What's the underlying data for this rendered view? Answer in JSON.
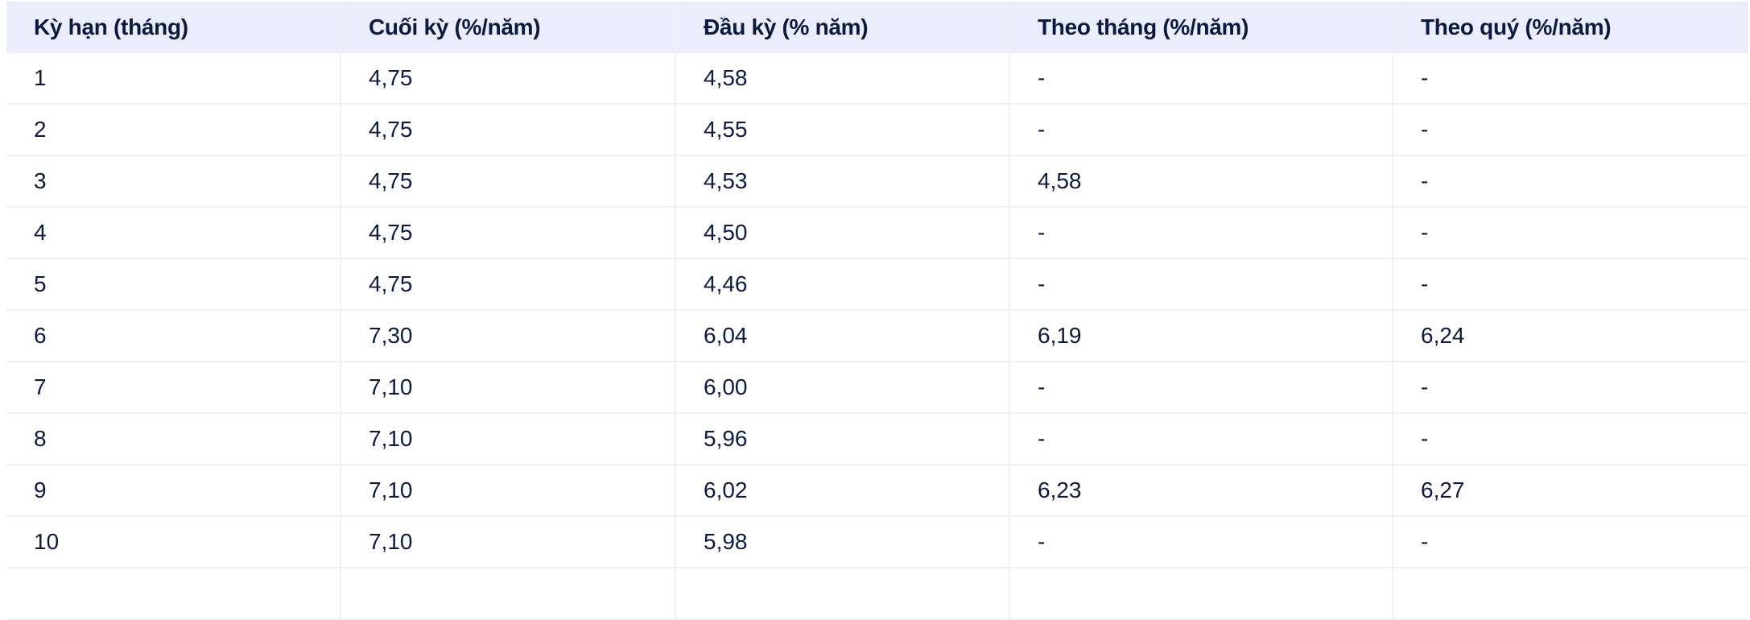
{
  "table": {
    "headers": [
      "Kỳ hạn (tháng)",
      "Cuối kỳ (%/năm)",
      "Đầu kỳ (% năm)",
      "Theo tháng (%/năm)",
      "Theo quý (%/năm)"
    ],
    "rows": [
      [
        "1",
        "4,75",
        "4,58",
        "-",
        "-"
      ],
      [
        "2",
        "4,75",
        "4,55",
        "-",
        "-"
      ],
      [
        "3",
        "4,75",
        "4,53",
        "4,58",
        "-"
      ],
      [
        "4",
        "4,75",
        "4,50",
        "-",
        "-"
      ],
      [
        "5",
        "4,75",
        "4,46",
        "-",
        "-"
      ],
      [
        "6",
        "7,30",
        "6,04",
        "6,19",
        "6,24"
      ],
      [
        "7",
        "7,10",
        "6,00",
        "-",
        "-"
      ],
      [
        "8",
        "7,10",
        "5,96",
        "-",
        "-"
      ],
      [
        "9",
        "7,10",
        "6,02",
        "6,23",
        "6,27"
      ],
      [
        "10",
        "7,10",
        "5,98",
        "-",
        "-"
      ],
      [
        "",
        "",
        "",
        "",
        ""
      ]
    ]
  },
  "colors": {
    "header_bg": "#ecedfc",
    "text": "#0c1b3d",
    "border": "#eef0f3"
  }
}
